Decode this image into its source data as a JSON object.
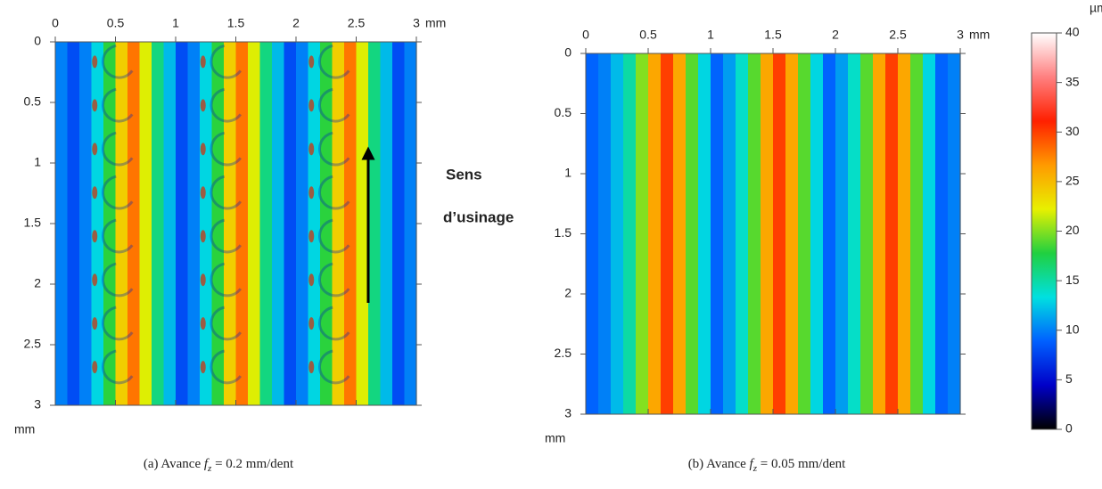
{
  "chart_data": [
    {
      "type": "heatmap",
      "caption": {
        "prefix": "(a) Avance ",
        "symbol": "f",
        "subscript": "z",
        "suffix": " = 0.2 mm/dent"
      },
      "x_unit": "mm",
      "y_unit": "mm",
      "xlim": [
        0,
        3
      ],
      "ylim": [
        0,
        3
      ],
      "xticks": [
        0,
        0.5,
        1,
        1.5,
        2,
        2.5,
        3
      ],
      "yticks": [
        0,
        0.5,
        1,
        1.5,
        2,
        2.5,
        3
      ],
      "x": [
        0.05,
        0.15,
        0.25,
        0.35,
        0.45,
        0.55,
        0.65,
        0.75,
        0.85,
        0.95,
        1.05,
        1.15,
        1.25,
        1.35,
        1.45,
        1.55,
        1.65,
        1.75,
        1.85,
        1.95,
        2.05,
        2.15,
        2.25,
        2.35,
        2.45,
        2.55,
        2.65,
        2.75,
        2.85,
        2.95
      ],
      "values": [
        10,
        8,
        10,
        13,
        18,
        24,
        28,
        22,
        16,
        12,
        8,
        10,
        13,
        18,
        24,
        28,
        22,
        16,
        12,
        8,
        10,
        13,
        18,
        24,
        28,
        22,
        16,
        12,
        8,
        10
      ],
      "annotations": [
        "Sens",
        "d’usinage"
      ]
    },
    {
      "type": "heatmap",
      "caption": {
        "prefix": "(b) Avance ",
        "symbol": "f",
        "subscript": "z",
        "suffix": " = 0.05 mm/dent"
      },
      "x_unit": "mm",
      "y_unit": "mm",
      "xlim": [
        0,
        3
      ],
      "ylim": [
        0,
        3
      ],
      "xticks": [
        0,
        0.5,
        1,
        1.5,
        2,
        2.5,
        3
      ],
      "yticks": [
        0,
        0.5,
        1,
        1.5,
        2,
        2.5,
        3
      ],
      "x": [
        0.05,
        0.15,
        0.25,
        0.35,
        0.45,
        0.55,
        0.65,
        0.75,
        0.85,
        0.95,
        1.05,
        1.15,
        1.25,
        1.35,
        1.45,
        1.55,
        1.65,
        1.75,
        1.85,
        1.95,
        2.05,
        2.15,
        2.25,
        2.35,
        2.45,
        2.55,
        2.65,
        2.75,
        2.85,
        2.95
      ],
      "values": [
        9,
        10,
        12,
        15,
        20,
        26,
        30,
        26,
        19,
        13,
        9,
        11,
        14,
        19,
        26,
        30,
        26,
        19,
        13,
        9,
        11,
        14,
        19,
        26,
        30,
        26,
        19,
        13,
        9,
        10
      ]
    },
    {
      "type": "colorbar",
      "unit": "µm",
      "zlim": [
        0,
        40
      ],
      "zticks": [
        0,
        5,
        10,
        15,
        20,
        25,
        30,
        35,
        40
      ],
      "colormap": [
        "#000000",
        "#0000c8",
        "#0060ff",
        "#00e0e0",
        "#20d040",
        "#e8f000",
        "#ff9a00",
        "#ff2000",
        "#ff8080",
        "#ffffff"
      ]
    }
  ]
}
